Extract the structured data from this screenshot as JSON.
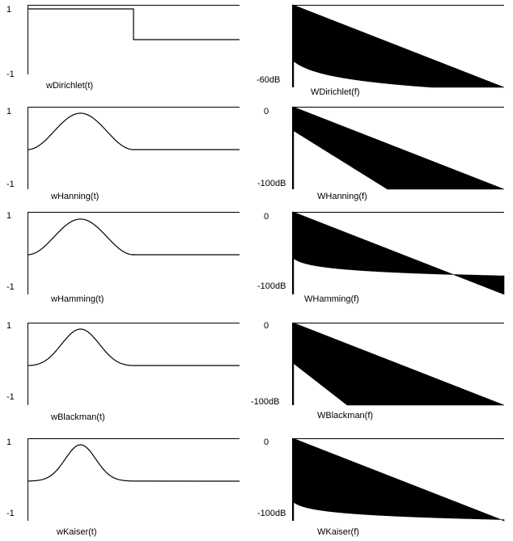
{
  "chart_data": [
    {
      "type": "line",
      "domain": "time",
      "label": "wDirichlet(t)",
      "ytop": "1",
      "ybottom": "-1"
    },
    {
      "type": "area",
      "domain": "freq",
      "label": "WDirichlet(f)",
      "ytop": "",
      "ybottom": "-60dB",
      "floor_db": -60,
      "sidelobe_db": -40
    },
    {
      "type": "line",
      "domain": "time",
      "label": "wHanning(t)",
      "ytop": "1",
      "ybottom": "-1"
    },
    {
      "type": "area",
      "domain": "freq",
      "label": "WHanning(f)",
      "ytop": "0",
      "ybottom": "-100dB",
      "floor_db": -100,
      "sidelobe_db": -28
    },
    {
      "type": "line",
      "domain": "time",
      "label": "wHamming(t)",
      "ytop": "1",
      "ybottom": "-1"
    },
    {
      "type": "area",
      "domain": "freq",
      "label": "WHamming(f)",
      "ytop": "0",
      "ybottom": "-100dB",
      "floor_db": -100,
      "sidelobe_db": -55
    },
    {
      "type": "line",
      "domain": "time",
      "label": "wBlackman(t)",
      "ytop": "1",
      "ybottom": "-1"
    },
    {
      "type": "area",
      "domain": "freq",
      "label": "WBlackman(f)",
      "ytop": "0",
      "ybottom": "-100dB",
      "floor_db": -100,
      "sidelobe_db": -48
    },
    {
      "type": "line",
      "domain": "time",
      "label": "wKaiser(t)",
      "ytop": "1",
      "ybottom": "-1"
    },
    {
      "type": "area",
      "domain": "freq",
      "label": "WKaiser(f)",
      "ytop": "0",
      "ybottom": "-100dB",
      "floor_db": -100,
      "sidelobe_db": -76
    }
  ]
}
